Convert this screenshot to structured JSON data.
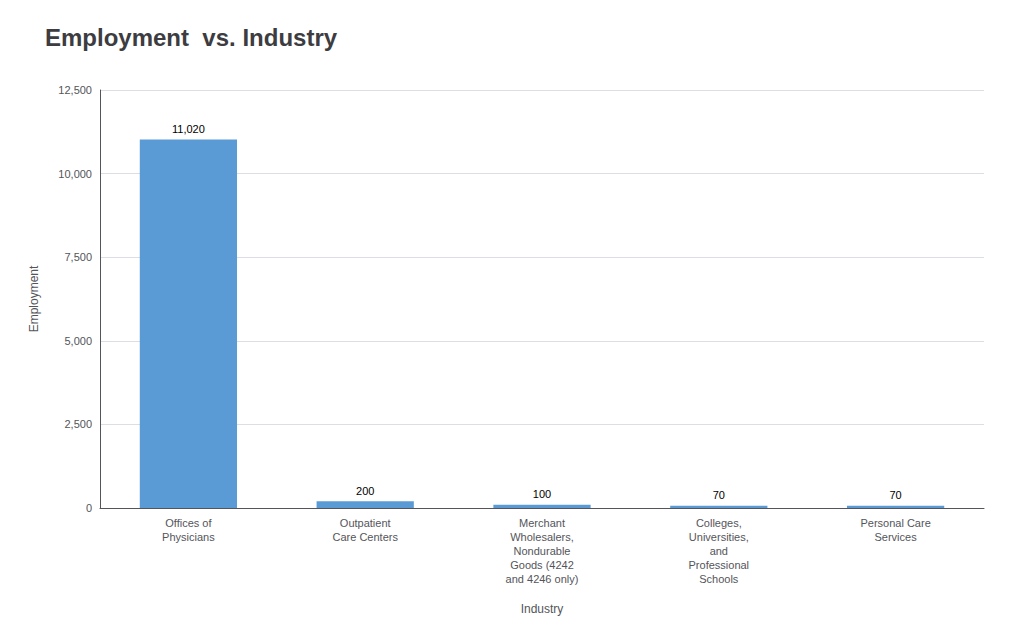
{
  "chart_data": {
    "type": "bar",
    "title": "Employment  vs. Industry",
    "xlabel": "Industry",
    "ylabel": "Employment",
    "categories": [
      "Offices of\nPhysicians",
      "Outpatient\nCare Centers",
      "Merchant\nWholesalers,\nNondurable\nGoods (4242\nand 4246 only)",
      "Colleges,\nUniversities,\nand\nProfessional\nSchools",
      "Personal Care\nServices"
    ],
    "values": [
      11020,
      200,
      100,
      70,
      70
    ],
    "value_labels": [
      "11,020",
      "200",
      "100",
      "70",
      "70"
    ],
    "color": "#5B9BD5",
    "ylim": [
      0,
      12500
    ],
    "yticks": [
      0,
      {
        "value": 2500,
        "label": "2,500"
      },
      {
        "value": 5000,
        "label": "5,000"
      },
      {
        "value": 7500,
        "label": "7,500"
      },
      {
        "value": 10000,
        "label": "10,000"
      },
      {
        "value": 12500,
        "label": "12,500"
      }
    ],
    "grid": true,
    "data_labels": true
  }
}
